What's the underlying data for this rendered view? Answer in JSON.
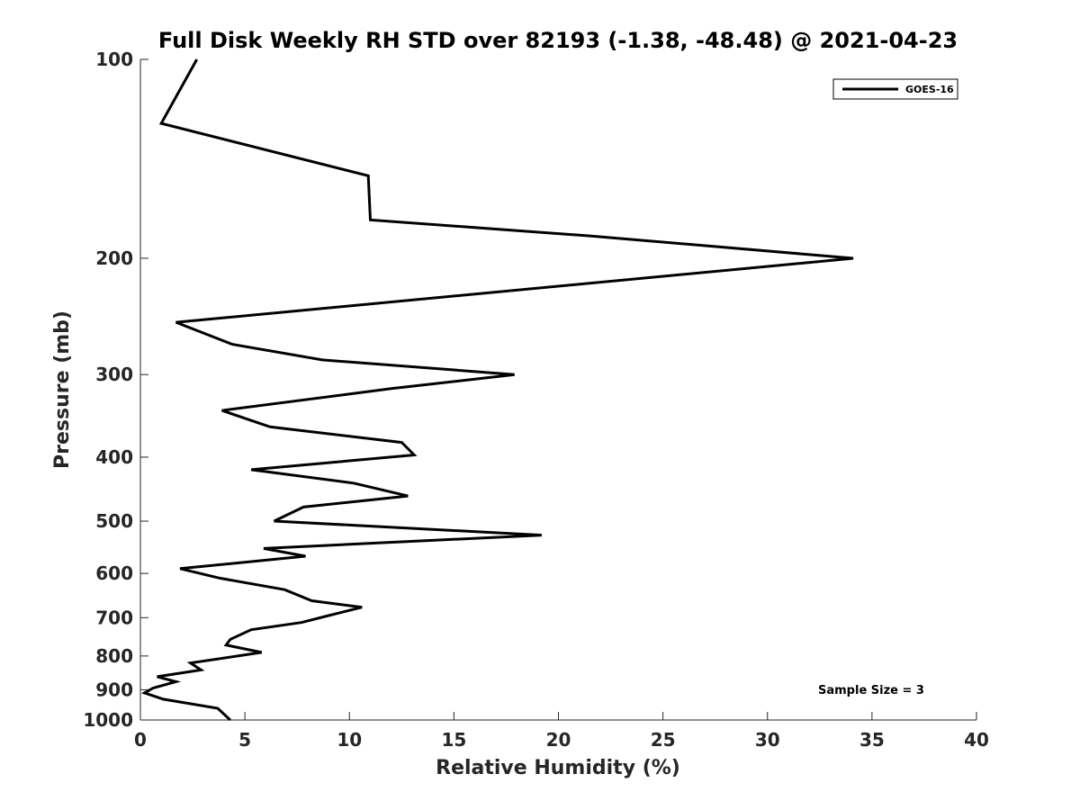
{
  "chart_data": {
    "type": "line",
    "title": "Full Disk Weekly RH STD over 82193 (-1.38, -48.48) @ 2021-04-23",
    "xlabel": "Relative Humidity (%)",
    "ylabel": "Pressure (mb)",
    "xlim": [
      0,
      40
    ],
    "ylim": [
      1000,
      100
    ],
    "yscale": "log",
    "x_ticks": [
      0,
      5,
      10,
      15,
      20,
      25,
      30,
      35,
      40
    ],
    "y_ticks": [
      100,
      200,
      300,
      400,
      500,
      600,
      700,
      800,
      900,
      1000
    ],
    "grid": false,
    "legend_position": "top-right",
    "annotation": "Sample Size = 3",
    "series": [
      {
        "name": "GOES-16",
        "color": "#000000",
        "points": [
          [
            2.7,
            100
          ],
          [
            1.0,
            125
          ],
          [
            10.9,
            150
          ],
          [
            11.0,
            175
          ],
          [
            21.5,
            185
          ],
          [
            34.1,
            200
          ],
          [
            1.7,
            250
          ],
          [
            4.4,
            270
          ],
          [
            8.7,
            285
          ],
          [
            17.9,
            300
          ],
          [
            12.0,
            315
          ],
          [
            3.9,
            340
          ],
          [
            6.2,
            360
          ],
          [
            12.5,
            380
          ],
          [
            13.1,
            397
          ],
          [
            5.3,
            418
          ],
          [
            10.2,
            438
          ],
          [
            12.8,
            458
          ],
          [
            7.8,
            476
          ],
          [
            6.4,
            500
          ],
          [
            19.2,
            525
          ],
          [
            5.9,
            550
          ],
          [
            7.9,
            565
          ],
          [
            1.9,
            590
          ],
          [
            3.8,
            610
          ],
          [
            6.9,
            635
          ],
          [
            8.2,
            660
          ],
          [
            10.6,
            675
          ],
          [
            9.0,
            695
          ],
          [
            7.7,
            712
          ],
          [
            5.3,
            730
          ],
          [
            4.3,
            755
          ],
          [
            4.1,
            770
          ],
          [
            5.8,
            790
          ],
          [
            2.4,
            820
          ],
          [
            2.9,
            840
          ],
          [
            0.8,
            860
          ],
          [
            1.7,
            875
          ],
          [
            0.6,
            895
          ],
          [
            0.2,
            910
          ],
          [
            1.1,
            930
          ],
          [
            3.7,
            960
          ],
          [
            4.3,
            1000
          ]
        ]
      }
    ]
  }
}
